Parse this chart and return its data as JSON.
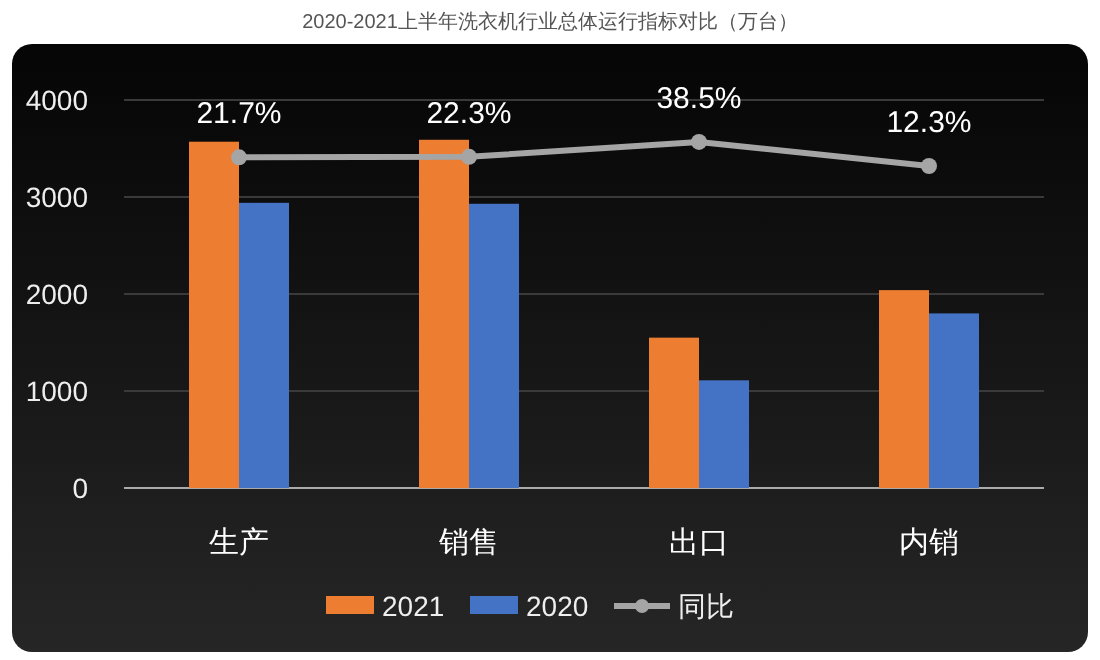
{
  "chart_data": {
    "type": "bar",
    "title": "2020-2021上半年洗衣机行业总体运行指标对比（万台）",
    "categories": [
      "生产",
      "销售",
      "出口",
      "内销"
    ],
    "series": [
      {
        "name": "2021",
        "color": "#ed7d31",
        "values": [
          3570,
          3590,
          1550,
          2040
        ]
      },
      {
        "name": "2020",
        "color": "#4472c4",
        "values": [
          2940,
          2930,
          1110,
          1800
        ]
      },
      {
        "name": "同比",
        "type": "line",
        "axis": "y2",
        "color": "#a5a5a5",
        "marker": "circle",
        "values": [
          21.7,
          22.3,
          38.5,
          12.3
        ],
        "value_labels": [
          "21.7%",
          "22.3%",
          "38.5%",
          "12.3%"
        ]
      }
    ],
    "ylim": [
      0,
      4000
    ],
    "yticks": [
      0,
      1000,
      2000,
      3000,
      4000
    ],
    "grid": "y",
    "legend": "bottom"
  }
}
